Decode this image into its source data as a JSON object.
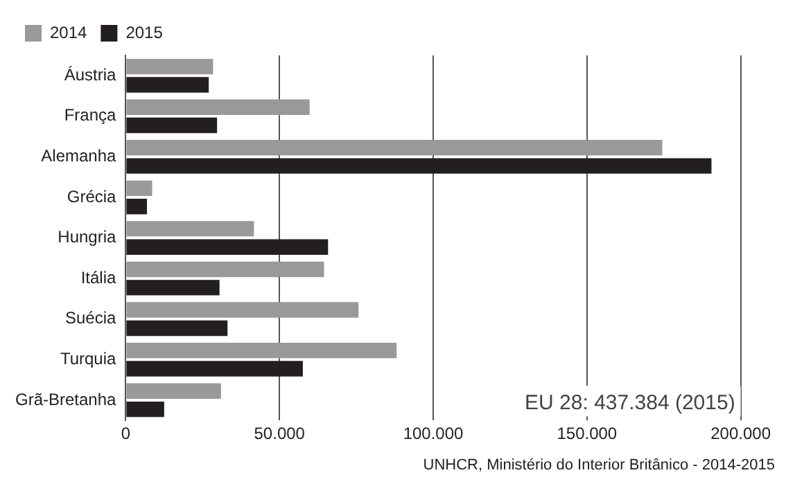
{
  "chart_data": {
    "type": "bar",
    "orientation": "horizontal",
    "categories": [
      "Áustria",
      "França",
      "Alemanha",
      "Grécia",
      "Hungria",
      "Itália",
      "Suécia",
      "Turquia",
      "Grã-Bretanha"
    ],
    "series": [
      {
        "name": "2014",
        "color": "#999999",
        "values": [
          28400,
          59800,
          174500,
          8600,
          41700,
          64500,
          75700,
          88100,
          31000
        ]
      },
      {
        "name": "2015",
        "color": "#231f20",
        "values": [
          27000,
          29700,
          190500,
          6900,
          65800,
          30500,
          33100,
          57600,
          12500
        ]
      }
    ],
    "xlim": [
      0,
      200000
    ],
    "xticks": [
      0,
      {
        "value": 50000,
        "label": "50.000"
      },
      {
        "value": 100000,
        "label": "100.000"
      },
      {
        "value": 150000,
        "label": "150.000"
      },
      {
        "value": 200000,
        "label": "200.000"
      }
    ],
    "grid": "x",
    "legend": "top left",
    "annotations": [
      "EU 28: 437.384 (2015)",
      "UNHCR, Ministério do Interior Britânico - 2014-2015"
    ]
  }
}
